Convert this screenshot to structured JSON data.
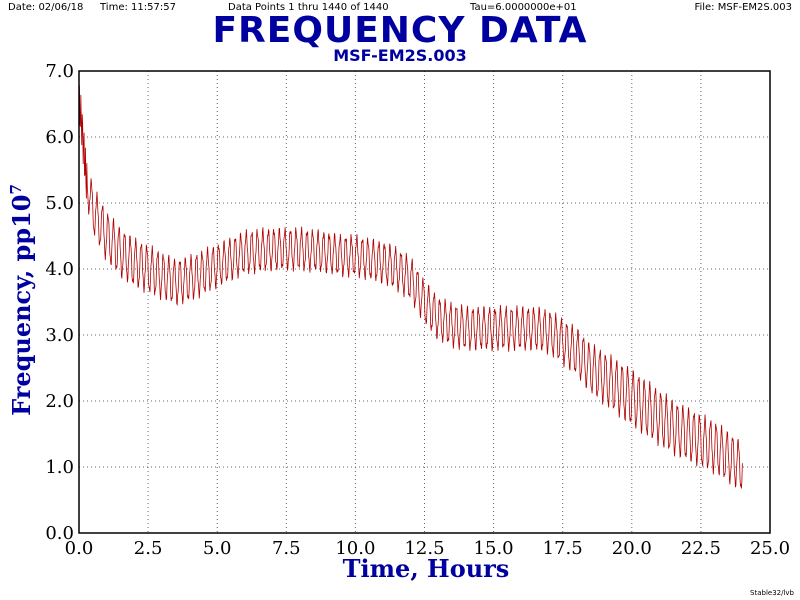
{
  "header": {
    "date": "Date: 02/06/18",
    "time": "Time: 11:57:57",
    "points": "Data Points 1 thru 1440 of 1440",
    "tau": "Tau=6.0000000e+01",
    "file": "File: MSF-EM2S.003"
  },
  "footer": "Stable32/lvb",
  "colors": {
    "title": "#0000a0",
    "trace": "#b00000",
    "axis": "#000000"
  },
  "chart_data": {
    "type": "line",
    "title": "FREQUENCY DATA",
    "subtitle": "MSF-EM2S.003",
    "xlabel": "Time, Hours",
    "ylabel": "Frequency, pp10",
    "ylabel_exponent": "7",
    "xlim": [
      0,
      25
    ],
    "ylim": [
      0,
      7
    ],
    "grid": true,
    "x_ticks": [
      "0.0",
      "2.5",
      "5.0",
      "7.5",
      "10.0",
      "12.5",
      "15.0",
      "17.5",
      "20.0",
      "22.5",
      "25.0"
    ],
    "y_ticks": [
      "0.0",
      "1.0",
      "2.0",
      "3.0",
      "4.0",
      "5.0",
      "6.0",
      "7.0"
    ],
    "series": [
      {
        "values_mean": [
          [
            0.0,
            6.5
          ],
          [
            0.1,
            6.2
          ],
          [
            0.25,
            5.4
          ],
          [
            0.5,
            4.9
          ],
          [
            1.0,
            4.5
          ],
          [
            1.5,
            4.25
          ],
          [
            2.0,
            4.1
          ],
          [
            2.5,
            4.0
          ],
          [
            3.0,
            3.9
          ],
          [
            3.5,
            3.8
          ],
          [
            4.0,
            3.85
          ],
          [
            4.5,
            3.95
          ],
          [
            5.0,
            4.05
          ],
          [
            5.5,
            4.15
          ],
          [
            6.0,
            4.25
          ],
          [
            6.5,
            4.28
          ],
          [
            7.0,
            4.3
          ],
          [
            7.5,
            4.3
          ],
          [
            8.0,
            4.3
          ],
          [
            8.5,
            4.28
          ],
          [
            9.0,
            4.25
          ],
          [
            9.5,
            4.2
          ],
          [
            10.0,
            4.2
          ],
          [
            10.5,
            4.15
          ],
          [
            11.0,
            4.1
          ],
          [
            11.5,
            4.0
          ],
          [
            12.0,
            3.85
          ],
          [
            12.5,
            3.5
          ],
          [
            13.0,
            3.25
          ],
          [
            13.5,
            3.15
          ],
          [
            14.0,
            3.1
          ],
          [
            14.5,
            3.1
          ],
          [
            15.0,
            3.1
          ],
          [
            15.5,
            3.1
          ],
          [
            16.0,
            3.1
          ],
          [
            16.5,
            3.1
          ],
          [
            17.0,
            3.05
          ],
          [
            17.5,
            2.9
          ],
          [
            18.0,
            2.75
          ],
          [
            18.5,
            2.5
          ],
          [
            19.0,
            2.35
          ],
          [
            19.5,
            2.2
          ],
          [
            20.0,
            2.05
          ],
          [
            20.5,
            1.9
          ],
          [
            21.0,
            1.75
          ],
          [
            21.5,
            1.6
          ],
          [
            22.0,
            1.5
          ],
          [
            22.5,
            1.4
          ],
          [
            23.0,
            1.3
          ],
          [
            23.5,
            1.15
          ],
          [
            24.0,
            1.0
          ]
        ],
        "amplitude": [
          [
            0.0,
            0.3
          ],
          [
            1.0,
            0.35
          ],
          [
            5.0,
            0.3
          ],
          [
            10.0,
            0.28
          ],
          [
            12.0,
            0.3
          ],
          [
            17.0,
            0.3
          ],
          [
            20.0,
            0.4
          ],
          [
            24.0,
            0.35
          ]
        ],
        "period_hours": 0.2,
        "points": 1440
      }
    ]
  }
}
